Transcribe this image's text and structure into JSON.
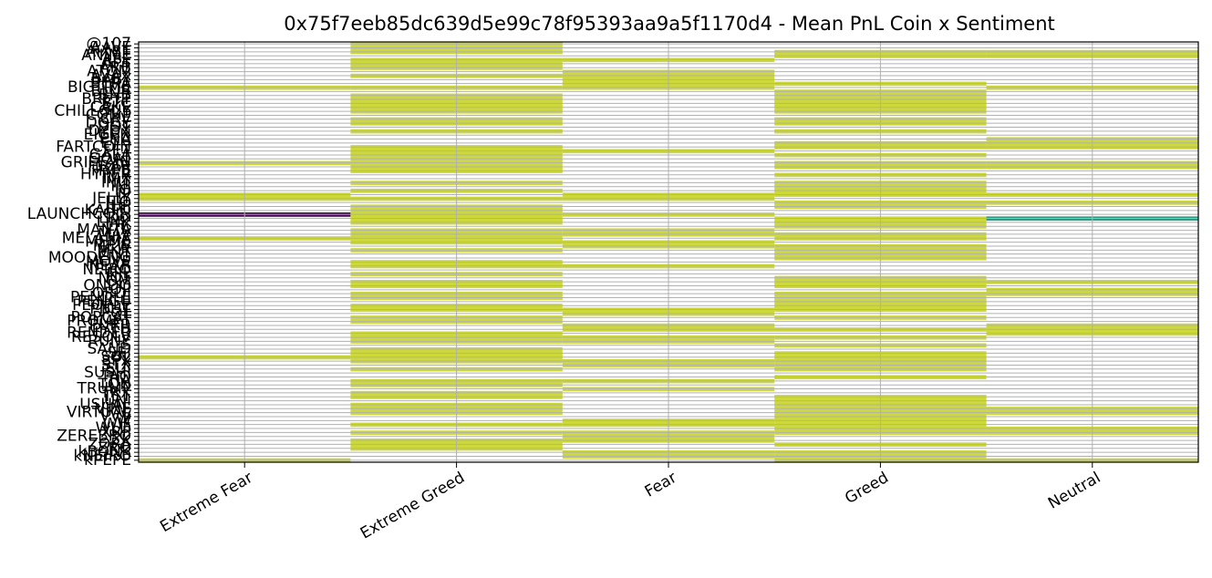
{
  "chart_data": {
    "type": "heatmap",
    "title": "0x75f7eeb85dc639d5e99c78f95393aa9a5f1170d4 - Mean PnL Coin x Sentiment",
    "xlabel": "",
    "ylabel": "",
    "x_categories": [
      "Extreme Fear",
      "Extreme Greed",
      "Fear",
      "Greed",
      "Neutral"
    ],
    "y_categories": [
      "@107",
      "AAVE",
      "AIXBT",
      "ANIME",
      "APE",
      "APT",
      "ARB",
      "ATOM",
      "AVAX",
      "BABY",
      "BERA",
      "BIGTIME",
      "BLUR",
      "BNB",
      "BRETT",
      "BTC",
      "CAKE",
      "CHILLGUY",
      "COMP",
      "CRV",
      "DOGE",
      "DOT",
      "DYDX",
      "EIGEN",
      "ENA",
      "ETH",
      "FARTCOIN",
      "FET",
      "GALA",
      "GOAT",
      "GRIFFAIN",
      "HBAR",
      "HYPE",
      "HYPER",
      "IMX",
      "INIT",
      "INJ",
      "IO",
      "IP",
      "JELLY",
      "JTO",
      "JUP",
      "KAITO",
      "LAUNCHCOIN",
      "LDO",
      "LINK",
      "LTC",
      "MANTA",
      "MAV",
      "MELANIA",
      "MEME",
      "MEW",
      "MKR",
      "MNT",
      "MOODENG",
      "MOVE",
      "NEAR",
      "NEIRO",
      "NIL",
      "NOT",
      "OM",
      "ONDO",
      "OP",
      "ORDI",
      "PENDLE",
      "PENGU",
      "PEOPLE",
      "PNUT",
      "POL",
      "POPCAT",
      "PROMPT",
      "PURR",
      "PYTH",
      "RENDER",
      "RESOLV",
      "RUNE",
      "S",
      "SAND",
      "SEI",
      "SOL",
      "SPX",
      "STX",
      "SUI",
      "SUSHI",
      "TAO",
      "TIA",
      "TON",
      "TRUMP",
      "TRX",
      "TST",
      "UNI",
      "USUAL",
      "VINE",
      "VIRTUAL",
      "VVV",
      "W",
      "WIF",
      "WLD",
      "XRP",
      "ZEREBRO",
      "ZK",
      "ZORA",
      "ZRO",
      "kBONK",
      "kNEIRO",
      "kPEPE"
    ],
    "values_note": "rows follow y_categories; columns follow x_categories; null = no data",
    "values": [
      [
        null,
        1,
        null,
        null,
        null
      ],
      [
        null,
        1,
        null,
        null,
        null
      ],
      [
        null,
        1,
        null,
        1,
        1
      ],
      [
        null,
        null,
        null,
        1,
        1
      ],
      [
        null,
        1,
        1,
        null,
        null
      ],
      [
        null,
        1,
        null,
        null,
        null
      ],
      [
        null,
        1,
        null,
        null,
        null
      ],
      [
        null,
        null,
        1,
        null,
        null
      ],
      [
        null,
        1,
        1,
        null,
        null
      ],
      [
        null,
        null,
        1,
        null,
        null
      ],
      [
        null,
        null,
        1,
        1,
        null
      ],
      [
        1,
        1,
        1,
        null,
        1
      ],
      [
        null,
        null,
        null,
        1,
        null
      ],
      [
        null,
        1,
        null,
        1,
        null
      ],
      [
        null,
        1,
        null,
        1,
        null
      ],
      [
        null,
        1,
        null,
        1,
        null
      ],
      [
        null,
        1,
        null,
        1,
        null
      ],
      [
        null,
        1,
        null,
        1,
        null
      ],
      [
        null,
        null,
        null,
        null,
        null
      ],
      [
        null,
        1,
        null,
        1,
        null
      ],
      [
        null,
        1,
        null,
        1,
        null
      ],
      [
        null,
        null,
        null,
        null,
        null
      ],
      [
        null,
        1,
        null,
        1,
        null
      ],
      [
        null,
        null,
        null,
        null,
        null
      ],
      [
        null,
        null,
        null,
        null,
        1
      ],
      [
        null,
        null,
        null,
        1,
        1
      ],
      [
        null,
        1,
        null,
        1,
        1
      ],
      [
        null,
        1,
        1,
        null,
        null
      ],
      [
        null,
        1,
        null,
        1,
        null
      ],
      [
        null,
        1,
        null,
        null,
        null
      ],
      [
        1,
        1,
        null,
        1,
        1
      ],
      [
        null,
        1,
        null,
        1,
        1
      ],
      [
        null,
        1,
        null,
        null,
        null
      ],
      [
        null,
        null,
        null,
        1,
        null
      ],
      [
        null,
        null,
        null,
        null,
        null
      ],
      [
        null,
        1,
        null,
        1,
        null
      ],
      [
        null,
        null,
        null,
        1,
        null
      ],
      [
        null,
        1,
        null,
        1,
        null
      ],
      [
        1,
        null,
        1,
        1,
        1
      ],
      [
        1,
        1,
        1,
        null,
        null
      ],
      [
        null,
        null,
        null,
        1,
        1
      ],
      [
        null,
        1,
        null,
        1,
        null
      ],
      [
        null,
        1,
        null,
        null,
        null
      ],
      [
        0,
        1,
        1,
        null,
        null
      ],
      [
        null,
        1,
        null,
        1,
        0.55
      ],
      [
        null,
        1,
        null,
        1,
        null
      ],
      [
        null,
        null,
        null,
        1,
        null
      ],
      [
        null,
        1,
        1,
        null,
        null
      ],
      [
        null,
        1,
        1,
        1,
        null
      ],
      [
        1,
        1,
        null,
        1,
        null
      ],
      [
        null,
        1,
        1,
        null,
        null
      ],
      [
        null,
        null,
        1,
        1,
        null
      ],
      [
        null,
        1,
        null,
        1,
        null
      ],
      [
        null,
        null,
        null,
        1,
        null
      ],
      [
        null,
        null,
        null,
        1,
        null
      ],
      [
        null,
        1,
        null,
        null,
        null
      ],
      [
        null,
        1,
        1,
        null,
        null
      ],
      [
        null,
        null,
        null,
        null,
        null
      ],
      [
        null,
        1,
        null,
        null,
        null
      ],
      [
        null,
        null,
        null,
        1,
        null
      ],
      [
        null,
        1,
        null,
        1,
        1
      ],
      [
        null,
        1,
        null,
        1,
        null
      ],
      [
        null,
        null,
        null,
        null,
        1
      ],
      [
        null,
        1,
        null,
        1,
        1
      ],
      [
        null,
        1,
        null,
        1,
        null
      ],
      [
        null,
        null,
        null,
        1,
        null
      ],
      [
        null,
        1,
        null,
        1,
        null
      ],
      [
        null,
        1,
        1,
        1,
        null
      ],
      [
        null,
        null,
        1,
        null,
        null
      ],
      [
        null,
        1,
        null,
        1,
        null
      ],
      [
        null,
        1,
        null,
        null,
        null
      ],
      [
        null,
        null,
        1,
        null,
        1
      ],
      [
        null,
        null,
        1,
        1,
        1
      ],
      [
        null,
        1,
        null,
        null,
        1
      ],
      [
        null,
        1,
        1,
        1,
        null
      ],
      [
        null,
        1,
        1,
        null,
        null
      ],
      [
        null,
        null,
        null,
        1,
        null
      ],
      [
        null,
        1,
        null,
        null,
        null
      ],
      [
        null,
        1,
        null,
        1,
        null
      ],
      [
        1,
        1,
        null,
        1,
        null
      ],
      [
        null,
        1,
        1,
        1,
        null
      ],
      [
        null,
        null,
        1,
        1,
        null
      ],
      [
        null,
        1,
        null,
        1,
        null
      ],
      [
        null,
        null,
        null,
        null,
        null
      ],
      [
        null,
        null,
        null,
        1,
        null
      ],
      [
        null,
        1,
        1,
        null,
        null
      ],
      [
        null,
        1,
        null,
        null,
        null
      ],
      [
        null,
        null,
        1,
        null,
        null
      ],
      [
        null,
        1,
        null,
        null,
        null
      ],
      [
        null,
        1,
        null,
        1,
        null
      ],
      [
        null,
        null,
        null,
        1,
        null
      ],
      [
        null,
        1,
        null,
        1,
        null
      ],
      [
        null,
        1,
        null,
        1,
        1
      ],
      [
        null,
        1,
        null,
        1,
        1
      ],
      [
        null,
        null,
        null,
        1,
        null
      ],
      [
        null,
        null,
        1,
        1,
        null
      ],
      [
        null,
        1,
        1,
        1,
        null
      ],
      [
        null,
        null,
        null,
        1,
        1
      ],
      [
        null,
        1,
        1,
        1,
        1
      ],
      [
        null,
        null,
        1,
        null,
        null
      ],
      [
        null,
        1,
        1,
        null,
        null
      ],
      [
        null,
        1,
        null,
        1,
        null
      ],
      [
        null,
        1,
        null,
        null,
        null
      ],
      [
        null,
        null,
        1,
        1,
        null
      ],
      [
        null,
        null,
        1,
        1,
        null
      ],
      [
        1,
        null,
        null,
        1,
        1
      ]
    ],
    "colormap": "viridis",
    "grid": true,
    "legend": "none"
  }
}
